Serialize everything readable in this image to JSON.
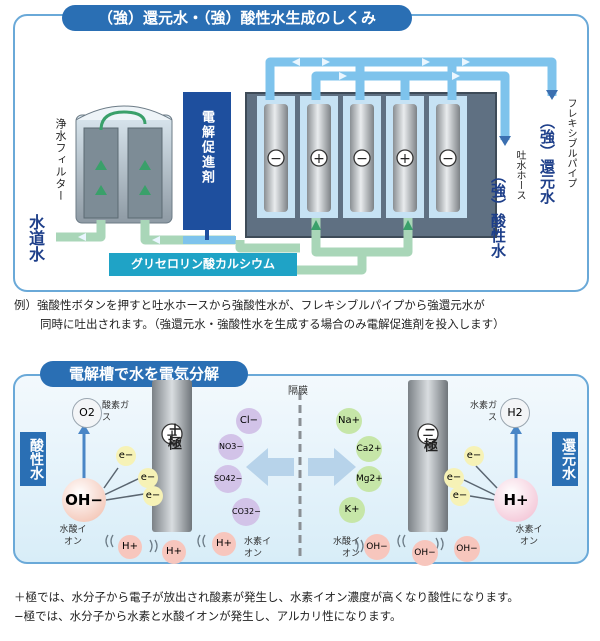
{
  "top": {
    "title": "（強）還元水・（強）酸性水生成のしくみ",
    "labels": {
      "filter": "浄水フィルター",
      "electrolyte": "電解促進剤",
      "tap_water": "水道水",
      "glycerol": "グリセロリン酸カルシウム",
      "flexible_pipe": "フレキシブルパイプ",
      "discharge_hose": "吐水ホース",
      "reduced_water": "（強）還元水",
      "acidic_water": "（強）酸性水"
    },
    "electrode_signs": [
      "−",
      "+",
      "−",
      "+",
      "−"
    ]
  },
  "description": [
    "例）強酸性ボタンを押すと吐水ホースから強酸性水が、フレキシブルパイプから強還元水が",
    "同時に吐出されます。（強還元水・強酸性水を生成する場合のみ電解促進剤を投入します）"
  ],
  "bottom": {
    "title": "電解槽で水を電気分解",
    "membrane": "隔膜",
    "plus_electrode": "＋極",
    "minus_electrode": "−極",
    "acidic_water": "酸性水",
    "reduced_water": "還元水",
    "oxygen_gas": "酸素ガス",
    "hydrogen_gas": "水素ガス",
    "hydroxide_ion": "水酸イオン",
    "hydrogen_ion": "水素イオン",
    "o2": "O2",
    "h2": "H2",
    "oh": "OH−",
    "hplus": "H+",
    "electron": "e−",
    "anions": [
      "Cl−",
      "NO3−",
      "SO42−",
      "CO32−"
    ],
    "cations": [
      "Na+",
      "Ca2+",
      "Mg2+",
      "K+"
    ]
  },
  "footer": [
    "＋極では、水分子から電子が放出され酸素が発生し、水素イオン濃度が高くなり酸性になります。",
    "−極では、水分子から水素と水酸イオンが発生し、アルカリ性になります。"
  ],
  "colors": {
    "accent_blue": "#2a6fb4",
    "pipe_blue": "#7ec3ec",
    "pipe_green": "#a9d6b8",
    "panel_border": "#6aa9d8"
  }
}
